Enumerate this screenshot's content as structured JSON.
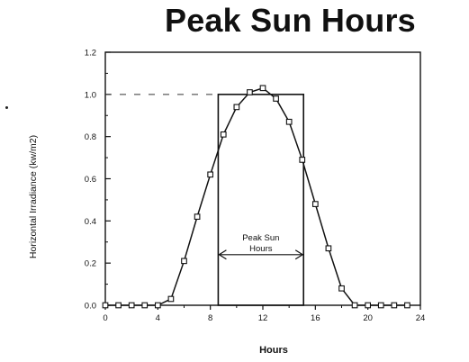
{
  "chart_data": {
    "type": "line",
    "title": "Peak Sun Hours",
    "xlabel": "Hours",
    "ylabel": "Horizontal Irradiance (kw/m2)",
    "xlim": [
      0,
      24
    ],
    "ylim": [
      0,
      1.2
    ],
    "x_ticks": [
      "0",
      "4",
      "8",
      "12",
      "16",
      "20",
      "24"
    ],
    "y_ticks": [
      "0.0",
      "0.2",
      "0.4",
      "0.6",
      "0.8",
      "1.0",
      "1.2"
    ],
    "grid": false,
    "series": [
      {
        "x": [
          0,
          1,
          2,
          3,
          4,
          5,
          6,
          7,
          8,
          9,
          10,
          11,
          12,
          13,
          14,
          15,
          16,
          17,
          18,
          19,
          20,
          21,
          22,
          23
        ],
        "y": [
          0,
          0,
          0,
          0,
          0,
          0.03,
          0.21,
          0.42,
          0.62,
          0.81,
          0.94,
          1.01,
          1.03,
          0.98,
          0.87,
          0.69,
          0.48,
          0.27,
          0.08,
          0,
          0,
          0,
          0,
          0
        ]
      }
    ],
    "peak_box": {
      "x_start": 8.6,
      "x_end": 15.1,
      "height": 1.0
    },
    "annotation": {
      "text_line1": "Peak Sun",
      "text_line2": "Hours"
    }
  }
}
